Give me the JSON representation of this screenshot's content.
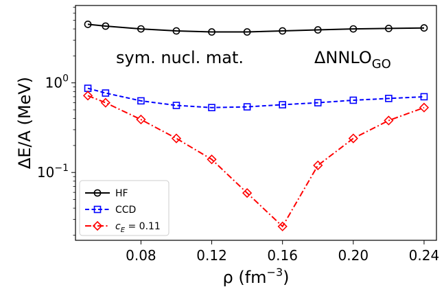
{
  "chart_data": {
    "type": "line",
    "xlabel": "ρ (fm",
    "xlabel_sup": "−3",
    "xlabel_close": ")",
    "ylabel": "ΔE/A (MeV)",
    "y_scale": "log",
    "xlim": [
      0.043,
      0.247
    ],
    "ylim": [
      0.0175,
      7.3
    ],
    "x_ticks": [
      0.08,
      0.12,
      0.16,
      0.2,
      0.24
    ],
    "x_tick_labels": [
      "0.08",
      "0.12",
      "0.16",
      "0.20",
      "0.24"
    ],
    "y_major_ticks": [
      0.1,
      1
    ],
    "y_tick_labels": [
      {
        "base": "10",
        "exp": "−1"
      },
      {
        "base": "10",
        "exp": "0"
      }
    ],
    "grid": false,
    "legend_position": "lower-left",
    "annotations": {
      "left": "sym. nucl. mat.",
      "right_main": "ΔNNLO",
      "right_sub": "GO"
    },
    "x": [
      0.05,
      0.06,
      0.08,
      0.1,
      0.12,
      0.14,
      0.16,
      0.18,
      0.2,
      0.22,
      0.24
    ],
    "series": [
      {
        "name": "HF",
        "color": "#000000",
        "marker": "circle",
        "linestyle": "solid",
        "values": [
          4.5,
          4.3,
          4.0,
          3.8,
          3.7,
          3.7,
          3.8,
          3.9,
          4.0,
          4.05,
          4.1
        ]
      },
      {
        "name": "CCD",
        "color": "#0000ff",
        "marker": "square",
        "linestyle": "dashed",
        "values": [
          0.87,
          0.77,
          0.63,
          0.56,
          0.53,
          0.54,
          0.57,
          0.6,
          0.64,
          0.67,
          0.7
        ]
      },
      {
        "name_prefix": "c",
        "name_sub": "E",
        "name_suffix": " = 0.11",
        "color": "#ff0000",
        "marker": "diamond",
        "linestyle": "dashdot",
        "values": [
          0.72,
          0.6,
          0.39,
          0.24,
          0.14,
          0.059,
          0.025,
          0.12,
          0.24,
          0.38,
          0.53
        ]
      }
    ]
  }
}
